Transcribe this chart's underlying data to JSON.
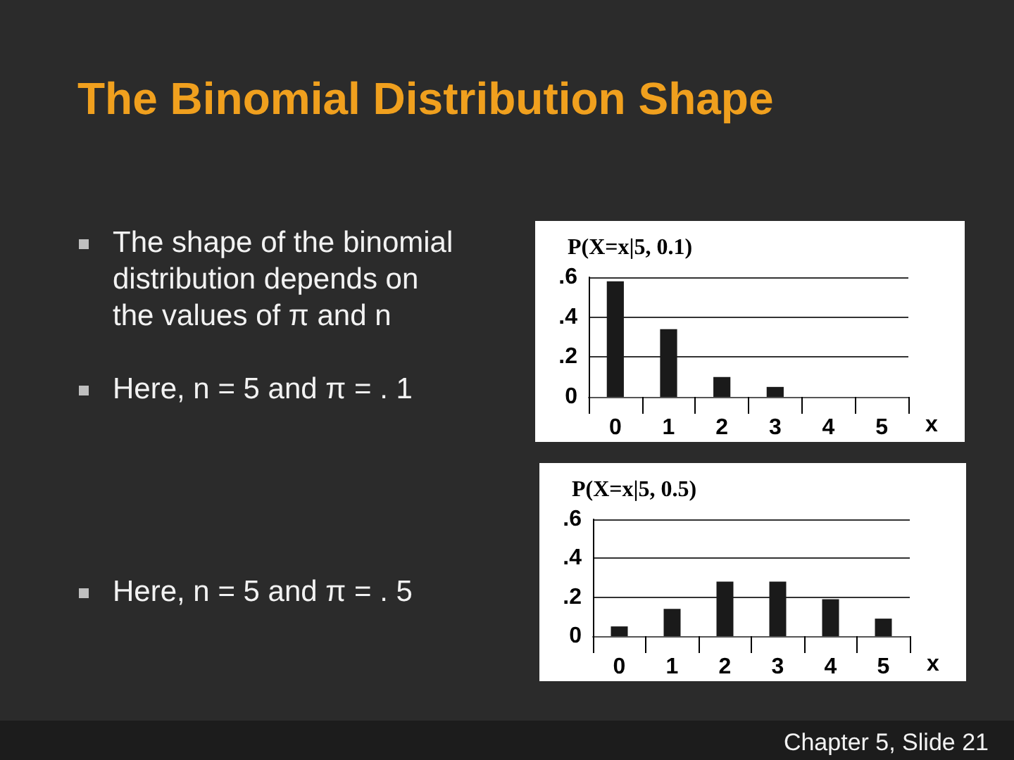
{
  "chart_data": [
    {
      "type": "other",
      "title": "The Binomial Distribution Shape",
      "annotations": [
        "The shape of the binomial distribution depends on the values of π and n",
        "Here, n = 5 and π = . 1",
        "Here, n = 5 and π = . 5",
        "Chapter 5, Slide 21"
      ]
    },
    {
      "type": "bar",
      "title": "P(X=x|5, 0.1)",
      "xlabel": "x",
      "categories": [
        "0",
        "1",
        "2",
        "3",
        "4",
        "5"
      ],
      "values": [
        0.58,
        0.34,
        0.1,
        0.05,
        0,
        0
      ],
      "color": "#1a1a1a",
      "ylim": [
        0,
        0.6
      ],
      "yticks": [
        {
          "value": 0,
          "label": "0"
        },
        {
          "value": 0.2,
          "label": ".2"
        },
        {
          "value": 0.4,
          "label": ".4"
        },
        {
          "value": 0.6,
          "label": ".6"
        }
      ],
      "grid": "y"
    },
    {
      "type": "bar",
      "title": "P(X=x|5, 0.5)",
      "xlabel": "x",
      "categories": [
        "0",
        "1",
        "2",
        "3",
        "4",
        "5"
      ],
      "values": [
        0.05,
        0.14,
        0.28,
        0.28,
        0.19,
        0.09
      ],
      "color": "#1a1a1a",
      "ylim": [
        0,
        0.6
      ],
      "yticks": [
        {
          "value": 0,
          "label": "0"
        },
        {
          "value": 0.2,
          "label": ".2"
        },
        {
          "value": 0.4,
          "label": ".4"
        },
        {
          "value": 0.6,
          "label": ".6"
        }
      ],
      "grid": "y"
    }
  ]
}
